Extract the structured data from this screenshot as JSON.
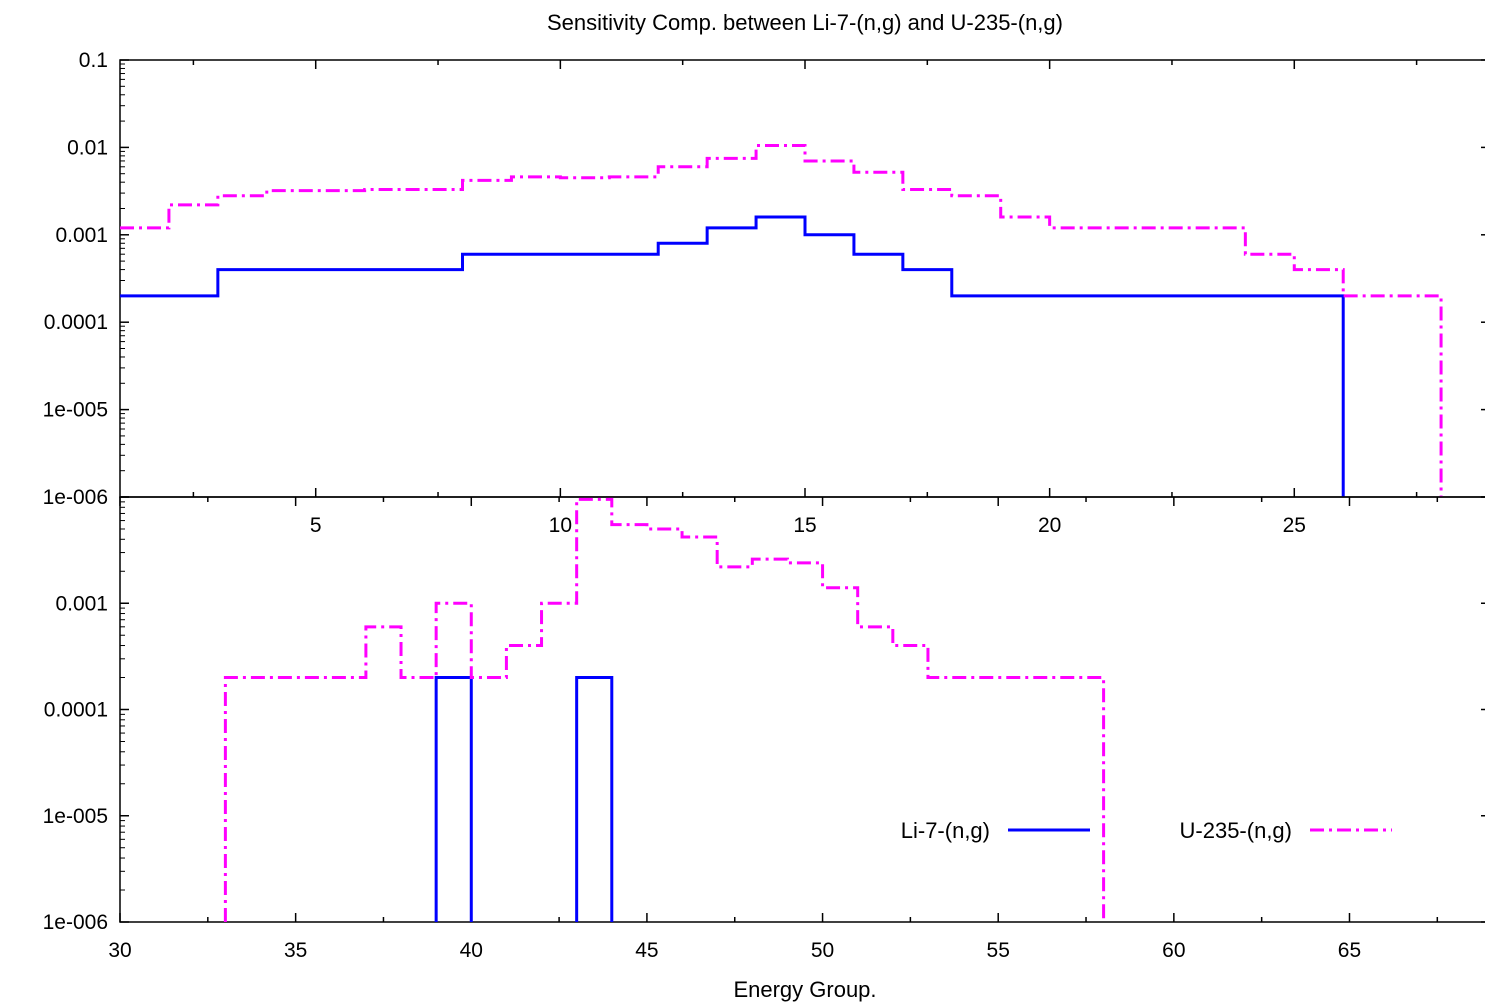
{
  "chart_data": [
    {
      "type": "line",
      "title": "Sensitivity Comp. between Li-7-(n,g) and U-235-(n,g)",
      "xlabel": "",
      "ylabel": "",
      "yscale": "log",
      "xlim": [
        1,
        29
      ],
      "ylim": [
        1e-06,
        0.1
      ],
      "xticks": [
        5,
        10,
        15,
        20,
        25
      ],
      "yticks": [
        0.1,
        0.01,
        0.001,
        0.0001,
        1e-05,
        1e-06
      ],
      "ytick_labels": [
        "0.1",
        "0.01",
        "0.001",
        "0.0001",
        "1e-005",
        "1e-006"
      ],
      "grid": false,
      "series": [
        {
          "name": "Li-7-(n,g)",
          "style": "solid",
          "color": "#0000ff",
          "steps": [
            {
              "x0": 1,
              "x1": 3,
              "y": 0.0002
            },
            {
              "x0": 3,
              "x1": 8,
              "y": 0.0004
            },
            {
              "x0": 8,
              "x1": 12,
              "y": 0.0006
            },
            {
              "x0": 12,
              "x1": 13,
              "y": 0.0008
            },
            {
              "x0": 13,
              "x1": 14,
              "y": 0.0012
            },
            {
              "x0": 14,
              "x1": 15,
              "y": 0.0016
            },
            {
              "x0": 15,
              "x1": 16,
              "y": 0.001
            },
            {
              "x0": 16,
              "x1": 17,
              "y": 0.0006
            },
            {
              "x0": 17,
              "x1": 18,
              "y": 0.0004
            },
            {
              "x0": 18,
              "x1": 26,
              "y": 0.0002
            }
          ]
        },
        {
          "name": "U-235-(n,g)",
          "style": "dashdot",
          "color": "#ff00ff",
          "steps": [
            {
              "x0": 1,
              "x1": 2,
              "y": 0.0012
            },
            {
              "x0": 2,
              "x1": 3,
              "y": 0.0022
            },
            {
              "x0": 3,
              "x1": 4,
              "y": 0.0028
            },
            {
              "x0": 4,
              "x1": 6,
              "y": 0.0032
            },
            {
              "x0": 6,
              "x1": 8,
              "y": 0.0033
            },
            {
              "x0": 8,
              "x1": 9,
              "y": 0.0042
            },
            {
              "x0": 9,
              "x1": 10,
              "y": 0.0046
            },
            {
              "x0": 10,
              "x1": 11,
              "y": 0.0045
            },
            {
              "x0": 11,
              "x1": 12,
              "y": 0.0046
            },
            {
              "x0": 12,
              "x1": 13,
              "y": 0.006
            },
            {
              "x0": 13,
              "x1": 14,
              "y": 0.0075
            },
            {
              "x0": 14,
              "x1": 15,
              "y": 0.0105
            },
            {
              "x0": 15,
              "x1": 16,
              "y": 0.007
            },
            {
              "x0": 16,
              "x1": 17,
              "y": 0.0052
            },
            {
              "x0": 17,
              "x1": 18,
              "y": 0.0033
            },
            {
              "x0": 18,
              "x1": 19,
              "y": 0.0028
            },
            {
              "x0": 19,
              "x1": 20,
              "y": 0.0016
            },
            {
              "x0": 20,
              "x1": 24,
              "y": 0.0012
            },
            {
              "x0": 24,
              "x1": 25,
              "y": 0.0006
            },
            {
              "x0": 25,
              "x1": 26,
              "y": 0.0004
            },
            {
              "x0": 26,
              "x1": 28,
              "y": 0.0002
            }
          ]
        }
      ]
    },
    {
      "type": "line",
      "title": "",
      "xlabel": "Energy Group.",
      "ylabel": "",
      "yscale": "log",
      "xlim": [
        30,
        69
      ],
      "ylim": [
        1e-06,
        0.01
      ],
      "xticks": [
        30,
        35,
        40,
        45,
        50,
        55,
        60,
        65
      ],
      "yticks": [
        0.01,
        0.001,
        0.0001,
        1e-05,
        1e-06
      ],
      "ytick_labels": [
        "",
        "0.001",
        "0.0001",
        "1e-005",
        "1e-006"
      ],
      "grid": false,
      "legend": "bottom-right",
      "series": [
        {
          "name": "Li-7-(n,g)",
          "style": "solid",
          "color": "#0000ff",
          "steps": [
            {
              "x0": 39,
              "x1": 40,
              "y": 0.0002
            },
            {
              "x0": 43,
              "x1": 44,
              "y": 0.0002
            }
          ]
        },
        {
          "name": "U-235-(n,g)",
          "style": "dashdot",
          "color": "#ff00ff",
          "steps": [
            {
              "x0": 33,
              "x1": 37,
              "y": 0.0002
            },
            {
              "x0": 37,
              "x1": 38,
              "y": 0.0006
            },
            {
              "x0": 38,
              "x1": 39,
              "y": 0.0002
            },
            {
              "x0": 39,
              "x1": 40,
              "y": 0.001
            },
            {
              "x0": 40,
              "x1": 41,
              "y": 0.0002
            },
            {
              "x0": 41,
              "x1": 42,
              "y": 0.0004
            },
            {
              "x0": 42,
              "x1": 43,
              "y": 0.001
            },
            {
              "x0": 43,
              "x1": 44,
              "y": 0.0095
            },
            {
              "x0": 44,
              "x1": 45,
              "y": 0.0055
            },
            {
              "x0": 45,
              "x1": 46,
              "y": 0.005
            },
            {
              "x0": 46,
              "x1": 47,
              "y": 0.0042
            },
            {
              "x0": 47,
              "x1": 48,
              "y": 0.0022
            },
            {
              "x0": 48,
              "x1": 49,
              "y": 0.0026
            },
            {
              "x0": 49,
              "x1": 50,
              "y": 0.0024
            },
            {
              "x0": 50,
              "x1": 51,
              "y": 0.0014
            },
            {
              "x0": 51,
              "x1": 52,
              "y": 0.0006
            },
            {
              "x0": 52,
              "x1": 53,
              "y": 0.0004
            },
            {
              "x0": 53,
              "x1": 58,
              "y": 0.0002
            }
          ]
        }
      ]
    }
  ]
}
